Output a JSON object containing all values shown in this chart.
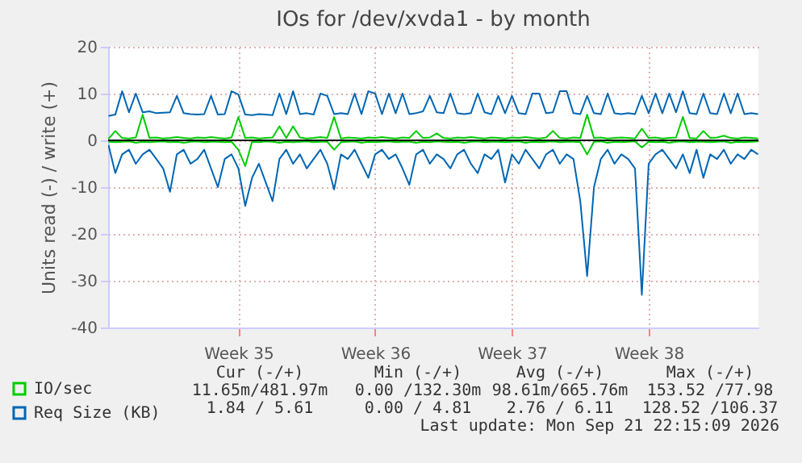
{
  "chart_data": {
    "type": "line",
    "title": "IOs for /dev/xvda1 - by month",
    "ylabel": "Units read (-) / write (+)",
    "categories": [
      null,
      null,
      null,
      null,
      null,
      null,
      null,
      null,
      null,
      null,
      null,
      null,
      null,
      null,
      null,
      null,
      null,
      null,
      null,
      "Week 35",
      null,
      null,
      null,
      null,
      null,
      null,
      null,
      null,
      null,
      null,
      null,
      null,
      null,
      null,
      null,
      null,
      null,
      null,
      null,
      "Week 36",
      null,
      null,
      null,
      null,
      null,
      null,
      null,
      null,
      null,
      null,
      null,
      null,
      null,
      null,
      null,
      null,
      null,
      null,
      null,
      "Week 37",
      null,
      null,
      null,
      null,
      null,
      null,
      null,
      null,
      null,
      null,
      null,
      null,
      null,
      null,
      null,
      null,
      null,
      null,
      null,
      "Week 38",
      null,
      null,
      null,
      null,
      null,
      null,
      null,
      null,
      null,
      null,
      null,
      null,
      null,
      null,
      null,
      null
    ],
    "series": [
      {
        "color": "#0066b3",
        "values": [
          -1,
          -7,
          -3,
          -2,
          -5,
          -3,
          -2,
          -4,
          -6,
          -11,
          -3,
          -2,
          -5,
          -4,
          -2,
          -6,
          -10,
          -4,
          -3,
          -6,
          -14,
          -8,
          -5,
          -9,
          -13,
          -4,
          -2,
          -5,
          -3,
          -6,
          -4,
          -2,
          -5,
          -10.5,
          -3,
          -4,
          -2,
          -5,
          -8,
          -3,
          -2,
          -4,
          -3,
          -6,
          -9.5,
          -3,
          -2,
          -5,
          -3,
          -4,
          -6,
          -3,
          -2,
          -5,
          -7,
          -3,
          -4,
          -2,
          -9,
          -3,
          -5,
          -2,
          -4,
          -6,
          -3,
          -2,
          -5,
          -3,
          -4,
          -13,
          -29,
          -10,
          -4,
          -2,
          -5,
          -3,
          -4,
          -6,
          -33,
          -5,
          -3,
          -2,
          -4,
          -6,
          -3,
          -7,
          -2,
          -8,
          -3,
          -4,
          -2,
          -5,
          -3,
          -4,
          -2,
          -3
        ]
      },
      {
        "name": "Req Size (KB)",
        "color": "#0066b3",
        "values": [
          5.2,
          5.5,
          10.5,
          6,
          10,
          6,
          6.2,
          5.8,
          5.9,
          6,
          9.5,
          5.8,
          5.6,
          5.5,
          5.6,
          9.5,
          5.5,
          5.6,
          10.5,
          9.8,
          5.5,
          5.4,
          5.6,
          5.5,
          5.4,
          10,
          5.6,
          10.5,
          5.6,
          5.8,
          5.5,
          10,
          9.5,
          5.6,
          5.8,
          5.6,
          10,
          5.6,
          10.5,
          10,
          5.6,
          10,
          5.8,
          10,
          5.6,
          5.8,
          6.2,
          9.5,
          6,
          5.8,
          10,
          5.8,
          5.6,
          5.8,
          10,
          6,
          5.6,
          9.5,
          5.8,
          9.5,
          5.8,
          5.6,
          10,
          10,
          5.8,
          6,
          10.5,
          10.5,
          5.8,
          5.6,
          9.5,
          5.8,
          5.6,
          10,
          5.8,
          5.6,
          5.8,
          5.6,
          9.5,
          5.8,
          10,
          5.8,
          10,
          6,
          10.5,
          5.8,
          5.6,
          10,
          5.8,
          5.6,
          10,
          5.8,
          10,
          5.6,
          5.8,
          5.6
        ]
      },
      {
        "color": "#00cc00",
        "values": [
          -0.3,
          -0.4,
          -0.3,
          -0.2,
          -0.5,
          -0.3,
          -0.4,
          -0.3,
          -0.2,
          -0.4,
          -0.3,
          -0.5,
          -0.3,
          -0.2,
          -0.4,
          -0.3,
          -0.3,
          -0.4,
          -0.3,
          -2,
          -5.5,
          -0.3,
          -0.4,
          -0.2,
          -0.3,
          -0.5,
          -0.3,
          -0.4,
          -0.3,
          -0.2,
          -0.4,
          -0.3,
          -0.3,
          -2,
          -0.4,
          -0.3,
          -0.2,
          -0.5,
          -0.3,
          -0.4,
          -0.3,
          -0.2,
          -0.4,
          -0.3,
          -0.3,
          -0.5,
          -0.3,
          -0.4,
          -0.2,
          -0.3,
          -0.4,
          -0.3,
          -0.5,
          -0.3,
          -0.2,
          -0.4,
          -0.3,
          -0.3,
          -0.4,
          -0.3,
          -0.2,
          -0.5,
          -0.3,
          -0.4,
          -0.3,
          -0.2,
          -0.4,
          -0.3,
          -0.3,
          -0.4,
          -3,
          -0.3,
          -0.2,
          -0.5,
          -0.3,
          -0.4,
          -0.3,
          -0.2,
          -1.5,
          -0.3,
          -0.4,
          -0.3,
          -0.5,
          -0.3,
          -0.2,
          -0.4,
          -0.3,
          -0.3,
          -0.4,
          -0.3,
          -0.2,
          -0.5,
          -0.3,
          -0.4,
          -0.3,
          -0.2
        ]
      },
      {
        "name": "IO/sec",
        "color": "#00cc00",
        "values": [
          0.3,
          2,
          0.5,
          0.4,
          0.6,
          5.5,
          0.5,
          0.6,
          0.4,
          0.5,
          0.7,
          0.5,
          0.4,
          0.6,
          0.5,
          0.7,
          0.5,
          0.4,
          0.6,
          5,
          0.5,
          0.6,
          0.4,
          0.5,
          0.6,
          3,
          0.5,
          3,
          0.6,
          0.4,
          0.5,
          0.7,
          0.5,
          5,
          0.4,
          0.6,
          0.5,
          0.4,
          0.6,
          0.5,
          0.7,
          0.5,
          0.4,
          0.6,
          0.5,
          2,
          0.5,
          0.6,
          1.5,
          0.5,
          0.4,
          0.6,
          0.5,
          0.7,
          0.5,
          0.4,
          0.6,
          0.5,
          0.4,
          0.6,
          0.5,
          0.7,
          0.5,
          0.4,
          0.6,
          2,
          0.5,
          0.4,
          0.6,
          0.5,
          5.5,
          0.5,
          0.6,
          0.4,
          0.5,
          0.6,
          0.5,
          0.4,
          2.5,
          0.5,
          0.6,
          0.4,
          0.5,
          0.6,
          5,
          0.5,
          0.4,
          2,
          0.5,
          0.6,
          1,
          0.5,
          0.4,
          0.6,
          0.5,
          0.4
        ]
      }
    ],
    "ylim": [
      -40,
      20
    ],
    "yticks": [
      -40,
      -30,
      -20,
      -10,
      0,
      10,
      20
    ],
    "ref_lines": [
      {
        "axis": "y",
        "value": 0,
        "color": "#000000"
      }
    ],
    "grid": true,
    "legend": "bottom left",
    "annotations": [
      "Cur (-/+)",
      "Min (-/+)",
      "Avg (-/+)",
      "Max (-/+)",
      "11.65m/481.97m",
      "0.00 /132.30m",
      "98.61m/665.76m",
      "153.52 /77.98",
      "1.84 / 5.61",
      "0.00 / 4.81",
      "2.76 / 6.11",
      "128.52 /106.37",
      "Last update: Mon Sep 21 22:15:09 2026"
    ]
  }
}
